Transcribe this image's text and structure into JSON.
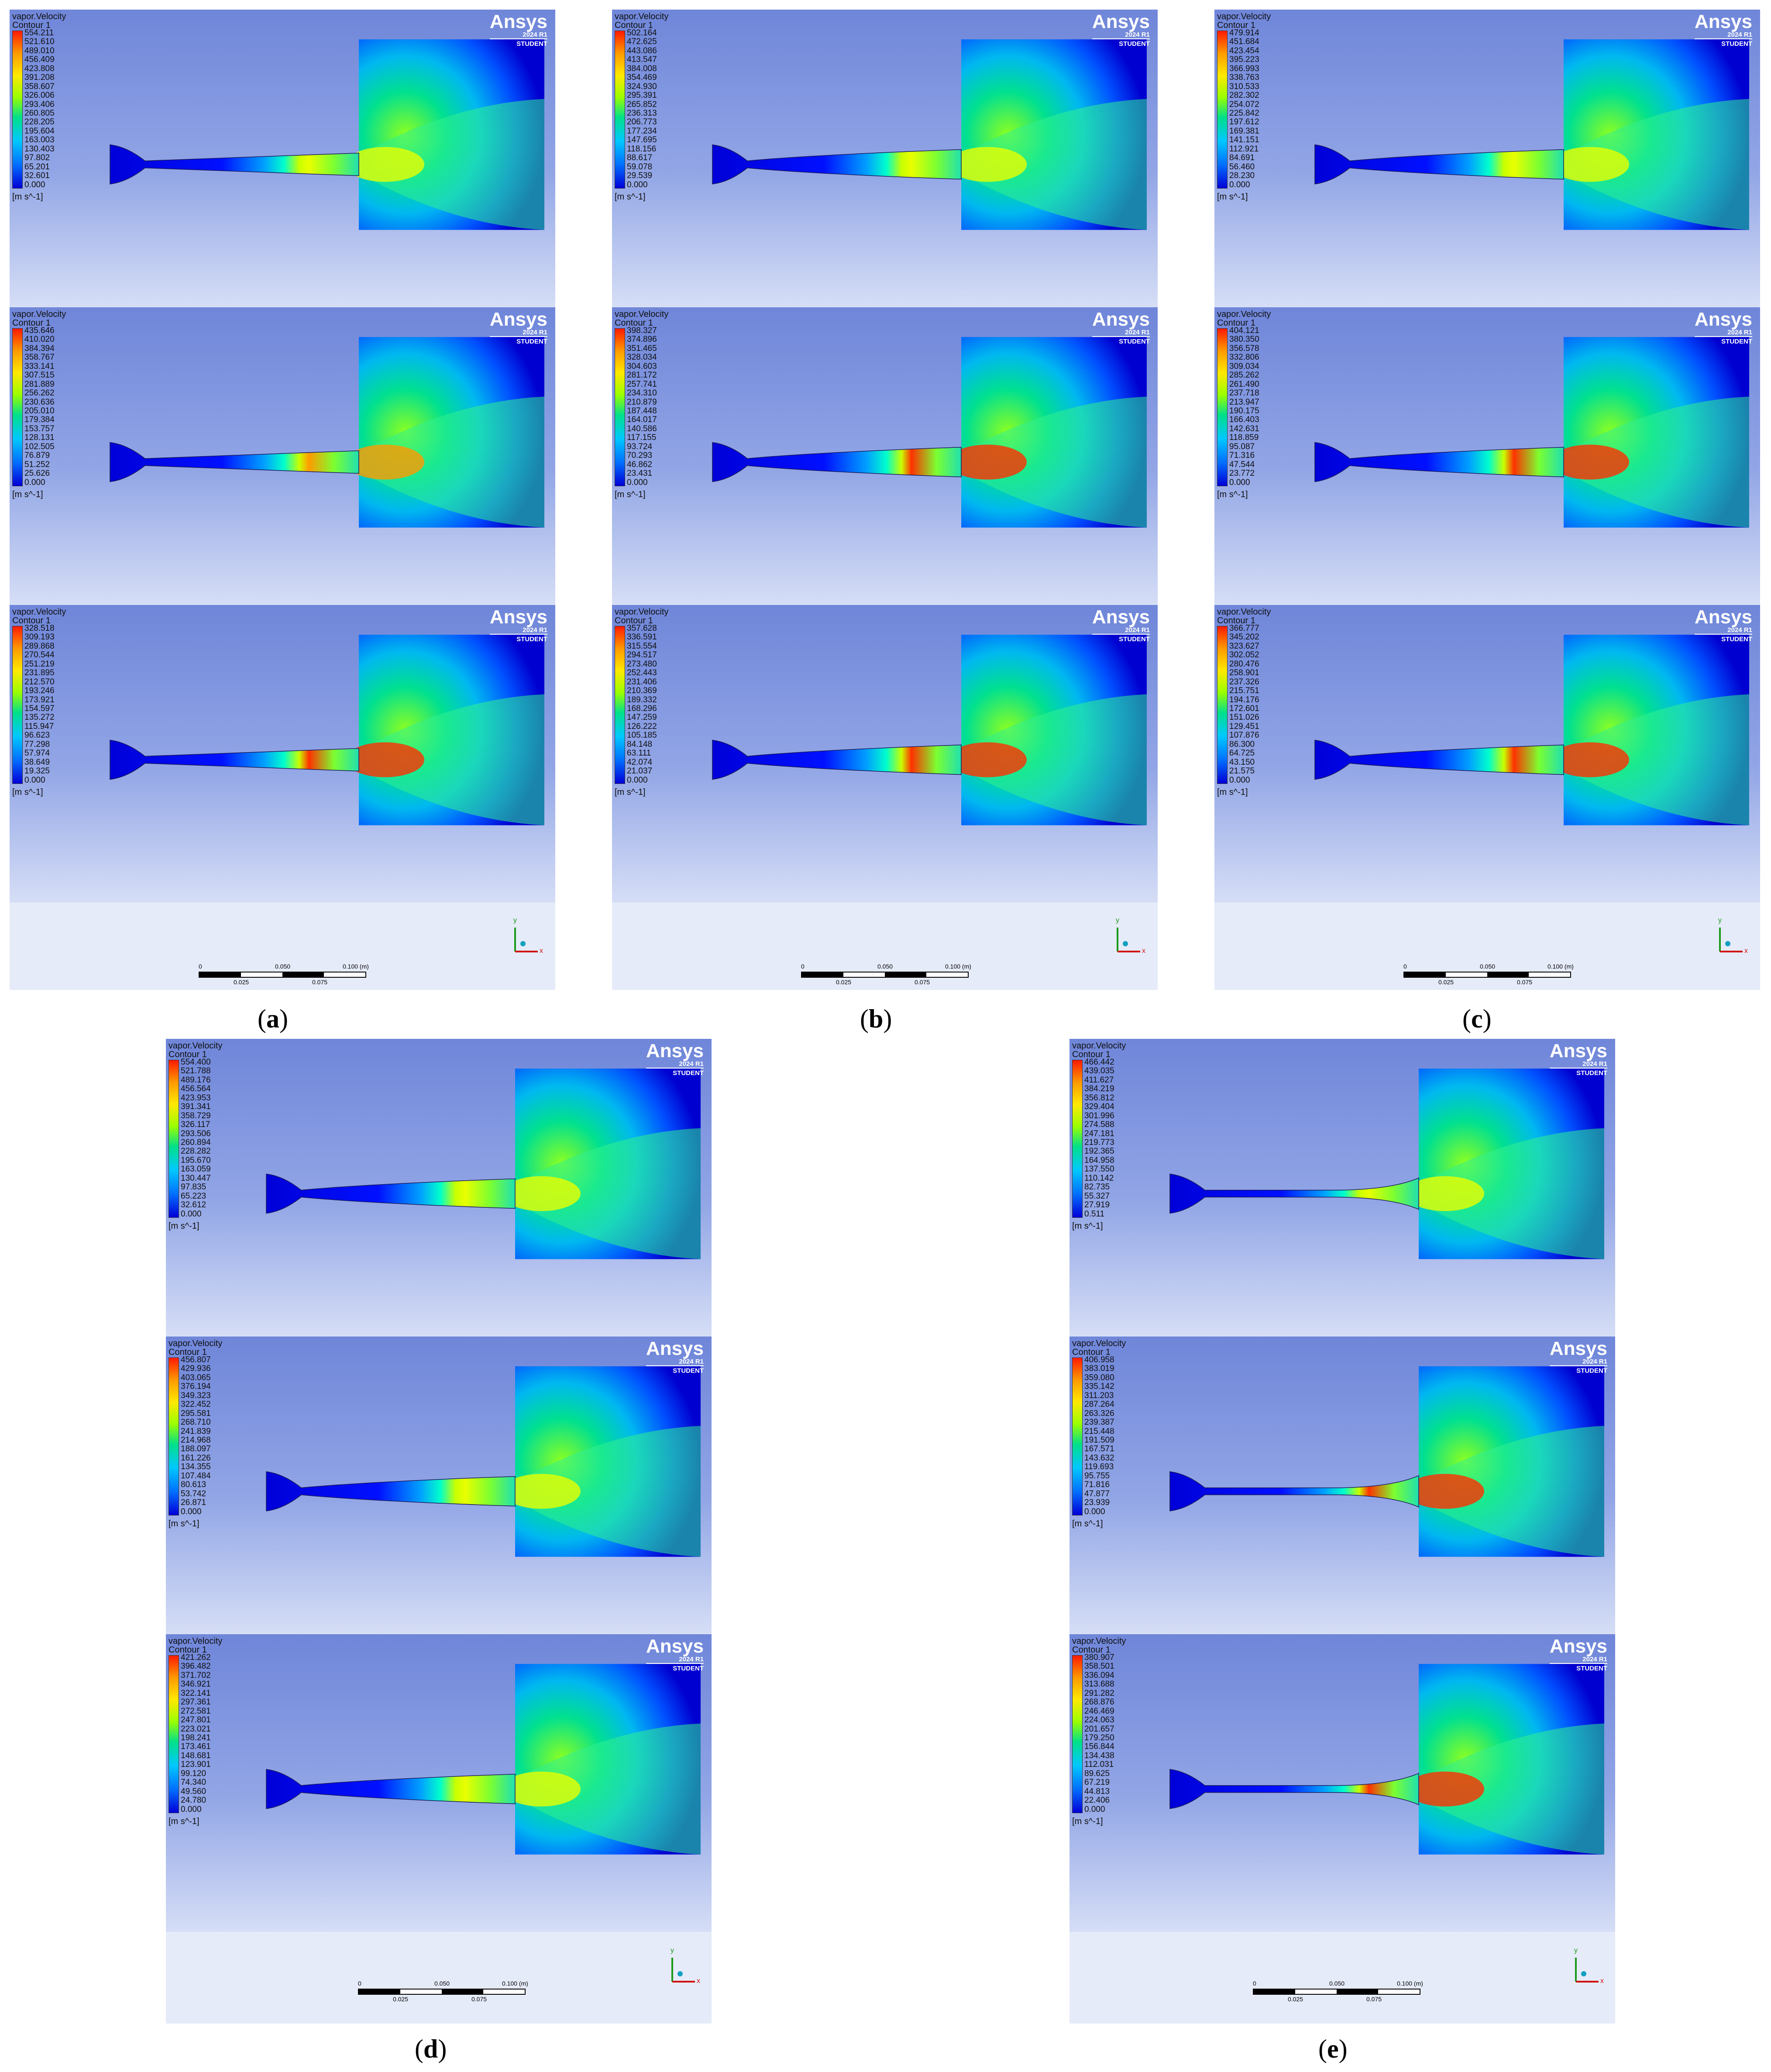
{
  "figures": [
    {
      "id": "a",
      "caption_letter": "a",
      "scale_labels": [
        "0",
        "0.050",
        "0.100 (m)",
        "0.025",
        "0.075"
      ],
      "panels": [
        {
          "variable": "vapor.Velocity",
          "contour": "Contour 1",
          "unit": "[m s^-1]",
          "legend": [
            "554.211",
            "521.610",
            "489.010",
            "456.409",
            "423.808",
            "391.208",
            "358.607",
            "326.006",
            "293.406",
            "260.805",
            "228.205",
            "195.604",
            "163.003",
            "130.403",
            "97.802",
            "65.201",
            "32.601",
            "0.000"
          ]
        },
        {
          "variable": "vapor.Velocity",
          "contour": "Contour 1",
          "unit": "[m s^-1]",
          "legend": [
            "435.646",
            "410.020",
            "384.394",
            "358.767",
            "333.141",
            "307.515",
            "281.889",
            "256.262",
            "230.636",
            "205.010",
            "179.384",
            "153.757",
            "128.131",
            "102.505",
            "76.879",
            "51.252",
            "25.626",
            "0.000"
          ]
        },
        {
          "variable": "vapor.Velocity",
          "contour": "Contour 1",
          "unit": "[m s^-1]",
          "legend": [
            "328.518",
            "309.193",
            "289.868",
            "270.544",
            "251.219",
            "231.895",
            "212.570",
            "193.246",
            "173.921",
            "154.597",
            "135.272",
            "115.947",
            "96.623",
            "77.298",
            "57.974",
            "38.649",
            "19.325",
            "0.000"
          ]
        }
      ]
    },
    {
      "id": "b",
      "caption_letter": "b",
      "scale_labels": [
        "0",
        "0.050",
        "0.100 (m)",
        "0.025",
        "0.075"
      ],
      "panels": [
        {
          "variable": "vapor.Velocity",
          "contour": "Contour 1",
          "unit": "[m s^-1]",
          "legend": [
            "502.164",
            "472.625",
            "443.086",
            "413.547",
            "384.008",
            "354.469",
            "324.930",
            "295.391",
            "265.852",
            "236.313",
            "206.773",
            "177.234",
            "147.695",
            "118.156",
            "88.617",
            "59.078",
            "29.539",
            "0.000"
          ]
        },
        {
          "variable": "vapor.Velocity",
          "contour": "Contour 1",
          "unit": "[m s^-1]",
          "legend": [
            "398.327",
            "374.896",
            "351.465",
            "328.034",
            "304.603",
            "281.172",
            "257.741",
            "234.310",
            "210.879",
            "187.448",
            "164.017",
            "140.586",
            "117.155",
            "93.724",
            "70.293",
            "46.862",
            "23.431",
            "0.000"
          ]
        },
        {
          "variable": "vapor.Velocity",
          "contour": "Contour 1",
          "unit": "[m s^-1]",
          "legend": [
            "357.628",
            "336.591",
            "315.554",
            "294.517",
            "273.480",
            "252.443",
            "231.406",
            "210.369",
            "189.332",
            "168.296",
            "147.259",
            "126.222",
            "105.185",
            "84.148",
            "63.111",
            "42.074",
            "21.037",
            "0.000"
          ]
        }
      ]
    },
    {
      "id": "c",
      "caption_letter": "c",
      "scale_labels": [
        "0",
        "0.050",
        "0.100 (m)",
        "0.025",
        "0.075"
      ],
      "panels": [
        {
          "variable": "vapor.Velocity",
          "contour": "Contour 1",
          "unit": "[m s^-1]",
          "legend": [
            "479.914",
            "451.684",
            "423.454",
            "395.223",
            "366.993",
            "338.763",
            "310.533",
            "282.302",
            "254.072",
            "225.842",
            "197.612",
            "169.381",
            "141.151",
            "112.921",
            "84.691",
            "56.460",
            "28.230",
            "0.000"
          ]
        },
        {
          "variable": "vapor.Velocity",
          "contour": "Contour 1",
          "unit": "[m s^-1]",
          "legend": [
            "404.121",
            "380.350",
            "356.578",
            "332.806",
            "309.034",
            "285.262",
            "261.490",
            "237.718",
            "213.947",
            "190.175",
            "166.403",
            "142.631",
            "118.859",
            "95.087",
            "71.316",
            "47.544",
            "23.772",
            "0.000"
          ]
        },
        {
          "variable": "vapor.Velocity",
          "contour": "Contour 1",
          "unit": "[m s^-1]",
          "legend": [
            "366.777",
            "345.202",
            "323.627",
            "302.052",
            "280.476",
            "258.901",
            "237.326",
            "215.751",
            "194.176",
            "172.601",
            "151.026",
            "129.451",
            "107.876",
            "86.300",
            "64.725",
            "43.150",
            "21.575",
            "0.000"
          ]
        }
      ]
    },
    {
      "id": "d",
      "caption_letter": "d",
      "scale_labels": [
        "0",
        "0.050",
        "0.100 (m)",
        "0.025",
        "0.075"
      ],
      "panels": [
        {
          "variable": "vapor.Velocity",
          "contour": "Contour 1",
          "unit": "[m s^-1]",
          "legend": [
            "554.400",
            "521.788",
            "489.176",
            "456.564",
            "423.953",
            "391.341",
            "358.729",
            "326.117",
            "293.506",
            "260.894",
            "228.282",
            "195.670",
            "163.059",
            "130.447",
            "97.835",
            "65.223",
            "32.612",
            "0.000"
          ]
        },
        {
          "variable": "vapor.Velocity",
          "contour": "Contour 1",
          "unit": "[m s^-1]",
          "legend": [
            "456.807",
            "429.936",
            "403.065",
            "376.194",
            "349.323",
            "322.452",
            "295.581",
            "268.710",
            "241.839",
            "214.968",
            "188.097",
            "161.226",
            "134.355",
            "107.484",
            "80.613",
            "53.742",
            "26.871",
            "0.000"
          ]
        },
        {
          "variable": "vapor.Velocity",
          "contour": "Contour 1",
          "unit": "[m s^-1]",
          "legend": [
            "421.262",
            "396.482",
            "371.702",
            "346.921",
            "322.141",
            "297.361",
            "272.581",
            "247.801",
            "223.021",
            "198.241",
            "173.461",
            "148.681",
            "123.901",
            "99.120",
            "74.340",
            "49.560",
            "24.780",
            "0.000"
          ]
        }
      ]
    },
    {
      "id": "e",
      "caption_letter": "e",
      "scale_labels": [
        "0",
        "0.050",
        "0.100 (m)",
        "0.025",
        "0.075"
      ],
      "panels": [
        {
          "variable": "vapor.Velocity",
          "contour": "Contour 1",
          "unit": "[m s^-1]",
          "legend": [
            "466.442",
            "439.035",
            "411.627",
            "384.219",
            "356.812",
            "329.404",
            "301.996",
            "274.588",
            "247.181",
            "219.773",
            "192.365",
            "164.958",
            "137.550",
            "110.142",
            "82.735",
            "55.327",
            "27.919",
            "0.511"
          ]
        },
        {
          "variable": "vapor.Velocity",
          "contour": "Contour 1",
          "unit": "[m s^-1]",
          "legend": [
            "406.958",
            "383.019",
            "359.080",
            "335.142",
            "311.203",
            "287.264",
            "263.326",
            "239.387",
            "215.448",
            "191.509",
            "167.571",
            "143.632",
            "119.693",
            "95.755",
            "71.816",
            "47.877",
            "23.939",
            "0.000"
          ]
        },
        {
          "variable": "vapor.Velocity",
          "contour": "Contour 1",
          "unit": "[m s^-1]",
          "legend": [
            "380.907",
            "358.501",
            "336.094",
            "313.688",
            "291.282",
            "268.876",
            "246.469",
            "224.063",
            "201.657",
            "179.250",
            "156.844",
            "134.438",
            "112.031",
            "89.625",
            "67.219",
            "44.813",
            "22.406",
            "0.000"
          ]
        }
      ]
    }
  ],
  "brand": {
    "logo": "Ansys",
    "version": "2024 R1",
    "edition": "STUDENT"
  },
  "triad": {
    "x": "x",
    "y": "y"
  },
  "colors": {
    "jet_red": "#ff1a00",
    "jet_yellow": "#ffe800",
    "jet_green": "#00e08a",
    "jet_blue": "#0000d8"
  }
}
